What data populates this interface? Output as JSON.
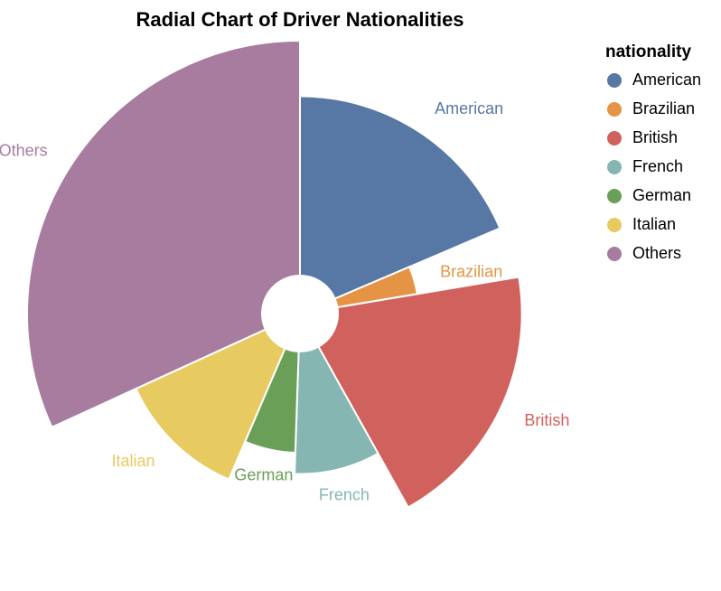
{
  "chart_data": {
    "type": "pie",
    "variant": "radial",
    "title": "Radial Chart of Driver Nationalities",
    "categories": [
      "American",
      "Brazilian",
      "British",
      "French",
      "German",
      "Italian",
      "Others"
    ],
    "values": [
      157,
      32,
      165,
      73,
      50,
      99,
      269
    ],
    "colors": [
      "#5778a4",
      "#e49444",
      "#d1615d",
      "#85b6b2",
      "#6a9f58",
      "#e7ca60",
      "#a87c9f"
    ],
    "legend": {
      "title": "nationality",
      "placement": "top-right",
      "items": [
        {
          "label": "American",
          "color": "#5778a4"
        },
        {
          "label": "Brazilian",
          "color": "#e49444"
        },
        {
          "label": "British",
          "color": "#d1615d"
        },
        {
          "label": "French",
          "color": "#85b6b2"
        },
        {
          "label": "German",
          "color": "#6a9f58"
        },
        {
          "label": "Italian",
          "color": "#e7ca60"
        },
        {
          "label": "Others",
          "color": "#a87c9f"
        }
      ]
    }
  }
}
